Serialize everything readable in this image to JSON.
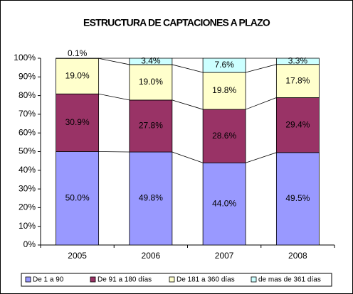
{
  "chart_data": {
    "type": "stacked_bar",
    "title": "ESTRUCTURA DE CAPTACIONES A PLAZO",
    "categories": [
      "2005",
      "2006",
      "2007",
      "2008"
    ],
    "series": [
      {
        "name": "De 1 a 90",
        "color": "#9999ff",
        "values": [
          50.0,
          49.8,
          44.0,
          49.5
        ],
        "value_labels": [
          "50.0%",
          "49.8%",
          "44.0%",
          "49.5%"
        ]
      },
      {
        "name": "De 91 a 180 días",
        "color": "#993366",
        "values": [
          30.9,
          27.8,
          28.6,
          29.4
        ],
        "value_labels": [
          "30.9%",
          "27.8%",
          "28.6%",
          "29.4%"
        ]
      },
      {
        "name": "De 181 a 360 días",
        "color": "#ffffcc",
        "values": [
          19.0,
          19.0,
          19.8,
          17.8
        ],
        "value_labels": [
          "19.0%",
          "19.0%",
          "19.8%",
          "17.8%"
        ]
      },
      {
        "name": "de mas de 361 días",
        "color": "#ccffff",
        "values": [
          0.1,
          3.4,
          7.6,
          3.3
        ],
        "value_labels": [
          "0.1%",
          "3.4%",
          "7.6%",
          "3.3%"
        ]
      }
    ],
    "ylim": [
      0,
      100
    ],
    "yticks": [
      {
        "value": 0,
        "label": "0%"
      },
      {
        "value": 10,
        "label": "10%"
      },
      {
        "value": 20,
        "label": "20%"
      },
      {
        "value": 30,
        "label": "30%"
      },
      {
        "value": 40,
        "label": "40%"
      },
      {
        "value": 50,
        "label": "50%"
      },
      {
        "value": 60,
        "label": "60%"
      },
      {
        "value": 70,
        "label": "70%"
      },
      {
        "value": 80,
        "label": "80%"
      },
      {
        "value": 90,
        "label": "90%"
      },
      {
        "value": 100,
        "label": "100%"
      }
    ],
    "legend": "bottom"
  }
}
